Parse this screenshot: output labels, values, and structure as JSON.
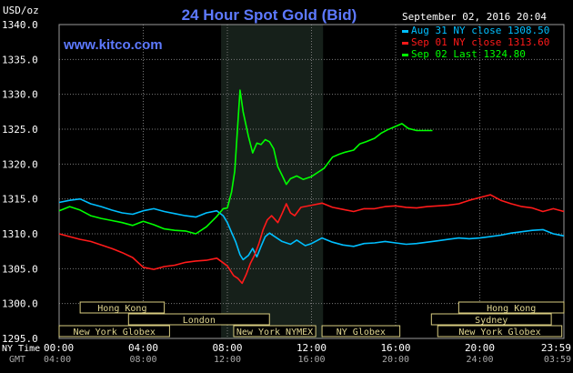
{
  "chart_data": {
    "type": "line",
    "title": "24 Hour Spot Gold (Bid)",
    "ylabel": "USD/oz",
    "watermark": "www.kitco.com",
    "date": "September 02, 2016 20:04",
    "ylim": [
      1295.0,
      1340.0
    ],
    "y_ticks": [
      "1340.0",
      "1335.0",
      "1330.0",
      "1325.0",
      "1320.0",
      "1315.0",
      "1310.0",
      "1305.0",
      "1300.0",
      "1295.0"
    ],
    "y_tick_values": [
      1340,
      1335,
      1330,
      1325,
      1320,
      1315,
      1310,
      1305,
      1300,
      1295
    ],
    "x_range_hours": [
      0,
      24
    ],
    "x_axis_ny_label": "NY Time",
    "x_axis_gmt_label": "GMT",
    "x_ticks_ny": [
      "00:00",
      "04:00",
      "08:00",
      "12:00",
      "16:00",
      "20:00",
      "23:59"
    ],
    "x_ticks_gmt": [
      "04:00",
      "08:00",
      "12:00",
      "16:00",
      "20:00",
      "24:00",
      "03:59"
    ],
    "x_tick_hours": [
      0,
      4,
      8,
      12,
      16,
      20,
      24
    ],
    "highlight_hours": [
      7.7,
      12.55
    ],
    "legend": [
      {
        "label": "Aug 31 NY close 1308.50",
        "color": "#00bfff"
      },
      {
        "label": "Sep 01 NY close 1313.60",
        "color": "#ff1a1a"
      },
      {
        "label": "Sep 02 Last 1324.80",
        "color": "#00ff00"
      }
    ],
    "sessions": [
      {
        "label": "Hong Kong",
        "start": 1.0,
        "end": 5.0,
        "row": 0
      },
      {
        "label": "London",
        "start": 3.3,
        "end": 10.0,
        "row": 1
      },
      {
        "label": "New York Globex",
        "start": 0.0,
        "end": 5.25,
        "row": 2
      },
      {
        "label": "New York NYMEX",
        "start": 8.3,
        "end": 12.2,
        "row": 2
      },
      {
        "label": "NY Globex",
        "start": 12.5,
        "end": 16.2,
        "row": 2
      },
      {
        "label": "Hong Kong",
        "start": 19.0,
        "end": 24.0,
        "row": 0
      },
      {
        "label": "Sydney",
        "start": 17.7,
        "end": 23.4,
        "row": 1
      },
      {
        "label": "New York Globex",
        "start": 18.0,
        "end": 23.9,
        "row": 2
      }
    ],
    "series": [
      {
        "name": "Aug 31 NY close 1308.50",
        "color": "#00bfff",
        "points": [
          [
            0,
            1314.5
          ],
          [
            0.5,
            1314.8
          ],
          [
            1,
            1315.0
          ],
          [
            1.5,
            1314.3
          ],
          [
            2,
            1313.9
          ],
          [
            2.5,
            1313.4
          ],
          [
            3,
            1313.0
          ],
          [
            3.5,
            1312.8
          ],
          [
            4,
            1313.3
          ],
          [
            4.5,
            1313.6
          ],
          [
            5,
            1313.2
          ],
          [
            5.5,
            1312.9
          ],
          [
            6,
            1312.6
          ],
          [
            6.5,
            1312.4
          ],
          [
            7,
            1313.0
          ],
          [
            7.5,
            1313.3
          ],
          [
            7.8,
            1312.6
          ],
          [
            8,
            1311.6
          ],
          [
            8.2,
            1310.2
          ],
          [
            8.4,
            1308.8
          ],
          [
            8.6,
            1307.0
          ],
          [
            8.75,
            1306.3
          ],
          [
            9,
            1306.9
          ],
          [
            9.2,
            1307.9
          ],
          [
            9.4,
            1306.7
          ],
          [
            9.6,
            1308.2
          ],
          [
            9.8,
            1309.6
          ],
          [
            10,
            1310.1
          ],
          [
            10.3,
            1309.5
          ],
          [
            10.6,
            1308.9
          ],
          [
            11,
            1308.5
          ],
          [
            11.3,
            1309.1
          ],
          [
            11.7,
            1308.3
          ],
          [
            12,
            1308.6
          ],
          [
            12.5,
            1309.4
          ],
          [
            13,
            1308.8
          ],
          [
            13.5,
            1308.4
          ],
          [
            14,
            1308.2
          ],
          [
            14.5,
            1308.6
          ],
          [
            15,
            1308.7
          ],
          [
            15.5,
            1308.9
          ],
          [
            16,
            1308.7
          ],
          [
            16.5,
            1308.5
          ],
          [
            17,
            1308.6
          ],
          [
            17.5,
            1308.8
          ],
          [
            18,
            1309.0
          ],
          [
            18.5,
            1309.2
          ],
          [
            19,
            1309.4
          ],
          [
            19.5,
            1309.3
          ],
          [
            20,
            1309.4
          ],
          [
            20.5,
            1309.6
          ],
          [
            21,
            1309.8
          ],
          [
            21.5,
            1310.1
          ],
          [
            22,
            1310.3
          ],
          [
            22.5,
            1310.5
          ],
          [
            23,
            1310.6
          ],
          [
            23.5,
            1310.0
          ],
          [
            24,
            1309.7
          ]
        ]
      },
      {
        "name": "Sep 01 NY close 1313.60",
        "color": "#ff1a1a",
        "points": [
          [
            0,
            1310.0
          ],
          [
            0.5,
            1309.6
          ],
          [
            1,
            1309.2
          ],
          [
            1.5,
            1308.9
          ],
          [
            2,
            1308.4
          ],
          [
            2.5,
            1307.9
          ],
          [
            3,
            1307.3
          ],
          [
            3.5,
            1306.6
          ],
          [
            4,
            1305.2
          ],
          [
            4.5,
            1304.9
          ],
          [
            5,
            1305.3
          ],
          [
            5.5,
            1305.5
          ],
          [
            6,
            1305.9
          ],
          [
            6.5,
            1306.1
          ],
          [
            7,
            1306.2
          ],
          [
            7.5,
            1306.5
          ],
          [
            8,
            1305.4
          ],
          [
            8.3,
            1304.0
          ],
          [
            8.5,
            1303.6
          ],
          [
            8.7,
            1302.9
          ],
          [
            8.9,
            1304.2
          ],
          [
            9.1,
            1305.8
          ],
          [
            9.3,
            1307.0
          ],
          [
            9.5,
            1308.6
          ],
          [
            9.7,
            1310.6
          ],
          [
            9.9,
            1312.0
          ],
          [
            10.1,
            1312.6
          ],
          [
            10.4,
            1311.6
          ],
          [
            10.6,
            1312.9
          ],
          [
            10.8,
            1314.3
          ],
          [
            11,
            1313.0
          ],
          [
            11.2,
            1312.6
          ],
          [
            11.5,
            1313.8
          ],
          [
            12,
            1314.1
          ],
          [
            12.5,
            1314.4
          ],
          [
            13,
            1313.8
          ],
          [
            13.5,
            1313.5
          ],
          [
            14,
            1313.2
          ],
          [
            14.5,
            1313.6
          ],
          [
            15,
            1313.6
          ],
          [
            15.5,
            1313.9
          ],
          [
            16,
            1314.0
          ],
          [
            16.5,
            1313.8
          ],
          [
            17,
            1313.7
          ],
          [
            17.5,
            1313.9
          ],
          [
            18,
            1314.0
          ],
          [
            18.5,
            1314.1
          ],
          [
            19,
            1314.3
          ],
          [
            19.5,
            1314.8
          ],
          [
            20,
            1315.2
          ],
          [
            20.5,
            1315.6
          ],
          [
            21,
            1314.8
          ],
          [
            21.5,
            1314.3
          ],
          [
            22,
            1313.9
          ],
          [
            22.5,
            1313.7
          ],
          [
            23,
            1313.2
          ],
          [
            23.5,
            1313.6
          ],
          [
            24,
            1313.2
          ]
        ]
      },
      {
        "name": "Sep 02 Last 1324.80",
        "color": "#00ff00",
        "points": [
          [
            0,
            1313.3
          ],
          [
            0.5,
            1313.9
          ],
          [
            1,
            1313.4
          ],
          [
            1.5,
            1312.6
          ],
          [
            2,
            1312.2
          ],
          [
            2.5,
            1311.9
          ],
          [
            3,
            1311.6
          ],
          [
            3.5,
            1311.2
          ],
          [
            4,
            1311.8
          ],
          [
            4.5,
            1311.3
          ],
          [
            5,
            1310.7
          ],
          [
            5.5,
            1310.5
          ],
          [
            6,
            1310.4
          ],
          [
            6.5,
            1310.0
          ],
          [
            7,
            1311.0
          ],
          [
            7.5,
            1312.5
          ],
          [
            7.8,
            1313.6
          ],
          [
            8,
            1313.7
          ],
          [
            8.2,
            1316.0
          ],
          [
            8.35,
            1319.0
          ],
          [
            8.5,
            1326.0
          ],
          [
            8.6,
            1330.6
          ],
          [
            8.75,
            1327.5
          ],
          [
            9,
            1324.0
          ],
          [
            9.2,
            1321.6
          ],
          [
            9.4,
            1323.0
          ],
          [
            9.6,
            1322.8
          ],
          [
            9.8,
            1323.5
          ],
          [
            10,
            1323.2
          ],
          [
            10.2,
            1322.2
          ],
          [
            10.4,
            1319.6
          ],
          [
            10.6,
            1318.4
          ],
          [
            10.8,
            1317.1
          ],
          [
            11,
            1317.9
          ],
          [
            11.3,
            1318.3
          ],
          [
            11.6,
            1317.8
          ],
          [
            12,
            1318.2
          ],
          [
            12.3,
            1318.8
          ],
          [
            12.6,
            1319.4
          ],
          [
            13,
            1321.0
          ],
          [
            13.3,
            1321.4
          ],
          [
            13.6,
            1321.7
          ],
          [
            14,
            1322.0
          ],
          [
            14.3,
            1322.9
          ],
          [
            14.6,
            1323.2
          ],
          [
            15,
            1323.7
          ],
          [
            15.3,
            1324.4
          ],
          [
            15.6,
            1324.9
          ],
          [
            16,
            1325.4
          ],
          [
            16.3,
            1325.8
          ],
          [
            16.6,
            1325.1
          ],
          [
            17,
            1324.8
          ],
          [
            17.5,
            1324.8
          ],
          [
            17.75,
            1324.8
          ]
        ]
      }
    ]
  }
}
